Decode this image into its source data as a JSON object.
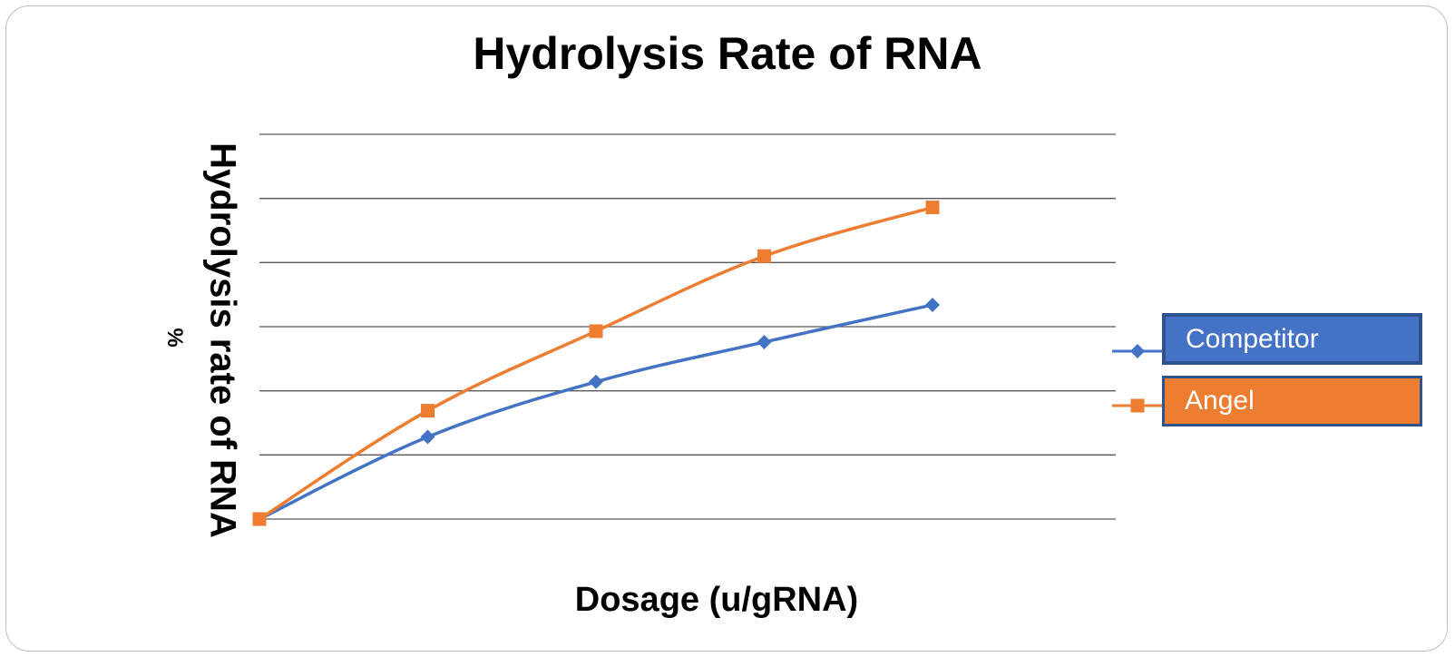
{
  "colors": {
    "series0": "#4472c4",
    "series1": "#ed7d31",
    "grid": "#595959"
  },
  "chart_data": {
    "type": "line",
    "title": "Hydrolysis Rate of RNA",
    "xlabel": "Dosage (u/gRNA)",
    "ylabel": "Hydrolysis rate of RNA",
    "yunit": "%",
    "x": [
      0,
      1,
      2,
      3,
      4
    ],
    "ylim": [
      0,
      6
    ],
    "grid": true,
    "legend_placement": "right",
    "series": [
      {
        "name": "Competitor",
        "marker": "diamond",
        "values": [
          0,
          1.28,
          2.14,
          2.76,
          3.34
        ]
      },
      {
        "name": "Angel",
        "marker": "square",
        "values": [
          0,
          1.69,
          2.93,
          4.1,
          4.86
        ]
      }
    ]
  }
}
